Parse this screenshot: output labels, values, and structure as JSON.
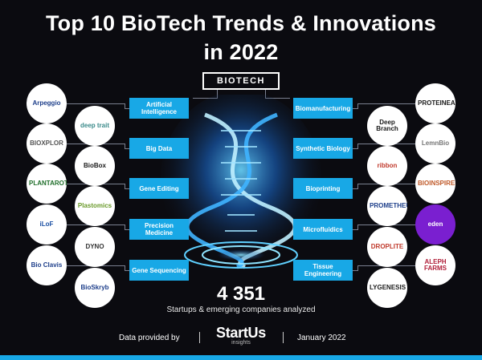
{
  "header": {
    "title_line1": "Top 10 BioTech Trends & Innovations",
    "title_line2": "in 2022",
    "center_label": "BIOTECH"
  },
  "trends_left": [
    {
      "label": "Artificial Intelligence"
    },
    {
      "label": "Big Data"
    },
    {
      "label": "Gene Editing"
    },
    {
      "label": "Precision Medicine"
    },
    {
      "label": "Gene Sequencing"
    }
  ],
  "trends_right": [
    {
      "label": "Biomanufacturing"
    },
    {
      "label": "Synthetic Biology"
    },
    {
      "label": "Bioprinting"
    },
    {
      "label": "Microfluidics"
    },
    {
      "label": "Tissue Engineering"
    }
  ],
  "logos_left_outer": [
    {
      "name": "Arpeggio",
      "color": "#1d3e8a"
    },
    {
      "name": "BIOXPLOR",
      "color": "#555555"
    },
    {
      "name": "PLANTAROT",
      "color": "#1f6e2a"
    },
    {
      "name": "iLoF",
      "color": "#1a4fa3"
    },
    {
      "name": "Bio Clavis",
      "color": "#1d3e8a"
    }
  ],
  "logos_left_inner": [
    {
      "name": "deep trait",
      "color": "#3a8a8a"
    },
    {
      "name": "BioBox",
      "color": "#1a1a1a"
    },
    {
      "name": "Plastomics",
      "color": "#6a9a2a"
    },
    {
      "name": "DYNO",
      "color": "#333333"
    },
    {
      "name": "BioSkryb",
      "color": "#1d3e8a"
    }
  ],
  "logos_right_inner": [
    {
      "name": "Deep Branch",
      "color": "#1a1a1a"
    },
    {
      "name": "ribbon",
      "color": "#c0392b"
    },
    {
      "name": "PROMETHEUS",
      "color": "#1d3e8a"
    },
    {
      "name": "DROPLITE",
      "color": "#c0392b"
    },
    {
      "name": "LYGENESIS",
      "color": "#1a1a1a"
    }
  ],
  "logos_right_outer": [
    {
      "name": "PROTEINEA",
      "color": "#1a1a1a"
    },
    {
      "name": "LemnBio",
      "color": "#777777"
    },
    {
      "name": "BIOINSPIRED",
      "color": "#c05a2a"
    },
    {
      "name": "eden",
      "color": "#ffffff",
      "bg": "#7a1fd0"
    },
    {
      "name": "ALEPH FARMS",
      "color": "#b0203a"
    }
  ],
  "stats": {
    "count": "4 351",
    "caption": "Startups & emerging companies analyzed"
  },
  "footer": {
    "provided_by": "Data provided by",
    "brand": "StartUs",
    "brand_sub": "insights",
    "date": "January 2022"
  },
  "colors": {
    "accent": "#18a8e6",
    "background": "#0b0b10"
  }
}
